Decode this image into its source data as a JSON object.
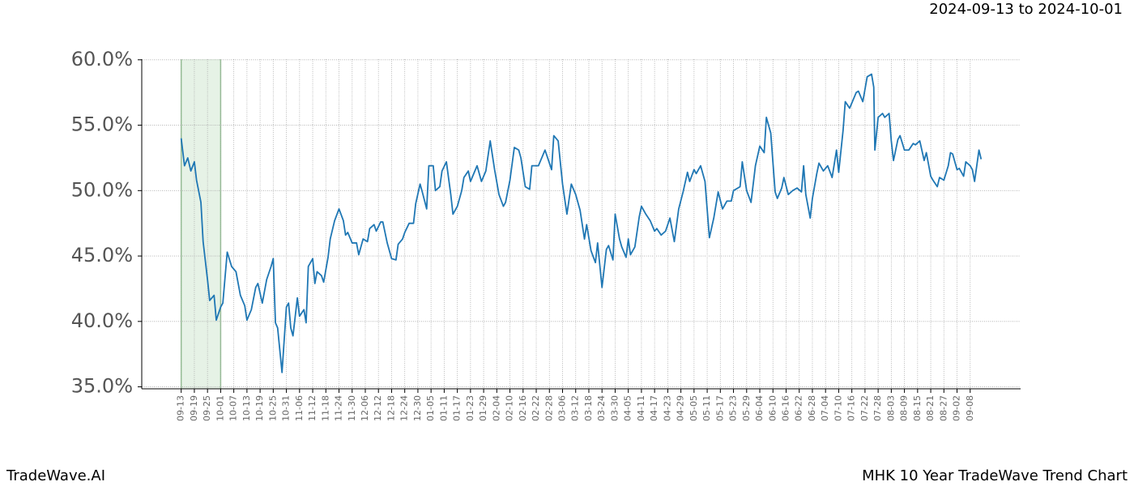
{
  "chart_data": {
    "type": "line",
    "header": "2024-09-13 to 2024-10-01",
    "footer_left": "TradeWave.AI",
    "footer_right": "MHK 10 Year TradeWave Trend Chart",
    "highlight_xlim": [
      0,
      18
    ],
    "highlight_color": "#e6f2e6",
    "grid": true,
    "xlim": [
      -18,
      383
    ],
    "ylim": [
      34.85,
      60.05
    ],
    "yticks": [
      {
        "value": 35,
        "label": "35.0%"
      },
      {
        "value": 40,
        "label": "40.0%"
      },
      {
        "value": 45,
        "label": "45.0%"
      },
      {
        "value": 50,
        "label": "50.0%"
      },
      {
        "value": 55,
        "label": "55.0%"
      },
      {
        "value": 60,
        "label": "60.0%"
      }
    ],
    "xticks": [
      {
        "value": 0,
        "label": "09-13"
      },
      {
        "value": 6,
        "label": "09-19"
      },
      {
        "value": 12,
        "label": "09-25"
      },
      {
        "value": 18,
        "label": "10-01"
      },
      {
        "value": 24,
        "label": "10-07"
      },
      {
        "value": 30,
        "label": "10-13"
      },
      {
        "value": 36,
        "label": "10-19"
      },
      {
        "value": 42,
        "label": "10-25"
      },
      {
        "value": 48,
        "label": "10-31"
      },
      {
        "value": 54,
        "label": "11-06"
      },
      {
        "value": 60,
        "label": "11-12"
      },
      {
        "value": 66,
        "label": "11-18"
      },
      {
        "value": 72,
        "label": "11-24"
      },
      {
        "value": 78,
        "label": "11-30"
      },
      {
        "value": 84,
        "label": "12-06"
      },
      {
        "value": 90,
        "label": "12-12"
      },
      {
        "value": 96,
        "label": "12-18"
      },
      {
        "value": 102,
        "label": "12-24"
      },
      {
        "value": 108,
        "label": "12-30"
      },
      {
        "value": 114,
        "label": "01-05"
      },
      {
        "value": 120,
        "label": "01-11"
      },
      {
        "value": 126,
        "label": "01-17"
      },
      {
        "value": 132,
        "label": "01-23"
      },
      {
        "value": 138,
        "label": "01-29"
      },
      {
        "value": 144,
        "label": "02-04"
      },
      {
        "value": 150,
        "label": "02-10"
      },
      {
        "value": 156,
        "label": "02-16"
      },
      {
        "value": 162,
        "label": "02-22"
      },
      {
        "value": 168,
        "label": "02-28"
      },
      {
        "value": 174,
        "label": "03-06"
      },
      {
        "value": 180,
        "label": "03-12"
      },
      {
        "value": 186,
        "label": "03-18"
      },
      {
        "value": 192,
        "label": "03-24"
      },
      {
        "value": 198,
        "label": "03-30"
      },
      {
        "value": 204,
        "label": "04-05"
      },
      {
        "value": 210,
        "label": "04-11"
      },
      {
        "value": 216,
        "label": "04-17"
      },
      {
        "value": 222,
        "label": "04-23"
      },
      {
        "value": 228,
        "label": "04-29"
      },
      {
        "value": 234,
        "label": "05-05"
      },
      {
        "value": 240,
        "label": "05-11"
      },
      {
        "value": 246,
        "label": "05-17"
      },
      {
        "value": 252,
        "label": "05-23"
      },
      {
        "value": 258,
        "label": "05-29"
      },
      {
        "value": 264,
        "label": "06-04"
      },
      {
        "value": 270,
        "label": "06-10"
      },
      {
        "value": 276,
        "label": "06-16"
      },
      {
        "value": 282,
        "label": "06-22"
      },
      {
        "value": 288,
        "label": "06-28"
      },
      {
        "value": 294,
        "label": "07-04"
      },
      {
        "value": 300,
        "label": "07-10"
      },
      {
        "value": 306,
        "label": "07-16"
      },
      {
        "value": 312,
        "label": "07-22"
      },
      {
        "value": 318,
        "label": "07-28"
      },
      {
        "value": 324,
        "label": "08-03"
      },
      {
        "value": 330,
        "label": "08-09"
      },
      {
        "value": 336,
        "label": "08-15"
      },
      {
        "value": 342,
        "label": "08-21"
      },
      {
        "value": 348,
        "label": "08-27"
      },
      {
        "value": 354,
        "label": "09-02"
      },
      {
        "value": 360,
        "label": "09-08"
      }
    ],
    "x": [
      0,
      1.5,
      3,
      4.4,
      6,
      7,
      9,
      10,
      12,
      13,
      15,
      16,
      18,
      19,
      21,
      23,
      25,
      27,
      29,
      30,
      32,
      34,
      35,
      37,
      39,
      41,
      42,
      43,
      44,
      46,
      48,
      49,
      50,
      51,
      53,
      54,
      56,
      57,
      58,
      60,
      61,
      62,
      64,
      65,
      67,
      68,
      70,
      72,
      74,
      75,
      76,
      78,
      80,
      81,
      83,
      85,
      86,
      88,
      89,
      91,
      92,
      94,
      96,
      98,
      99,
      101,
      102,
      104,
      106,
      107,
      109,
      110,
      112,
      113,
      115,
      116,
      118,
      119,
      121,
      123,
      124,
      126,
      128,
      129,
      131,
      132,
      135,
      137,
      139,
      141,
      143,
      145,
      147,
      148,
      150,
      152,
      154,
      155,
      157,
      159,
      160,
      163,
      164,
      166,
      169,
      170,
      172,
      174,
      176,
      178,
      180,
      182,
      184,
      185,
      187,
      189,
      190,
      192,
      194,
      195,
      197,
      198,
      200,
      201,
      203,
      204,
      205,
      207,
      209,
      210,
      212,
      214,
      216,
      217,
      219,
      221,
      223,
      225,
      227,
      229,
      231,
      232,
      234,
      235,
      237,
      239,
      241,
      243,
      245,
      247,
      249,
      251,
      252,
      255,
      256,
      258,
      260,
      262,
      264,
      266,
      267,
      269,
      271,
      272,
      274,
      275,
      277,
      279,
      281,
      283,
      284,
      285,
      287,
      288,
      290,
      291,
      293,
      295,
      297,
      299,
      300,
      302,
      303,
      305,
      306,
      308,
      309,
      311,
      313,
      315,
      316,
      316.5,
      318,
      320,
      321,
      323,
      324,
      325,
      327,
      328,
      330,
      332,
      334,
      335,
      337,
      339,
      340,
      342,
      343,
      345,
      346,
      348,
      350,
      351,
      352,
      354,
      355,
      357,
      358,
      360,
      361,
      362,
      364,
      365
    ],
    "series": [
      {
        "color": "#1f77b4",
        "values": [
          54.0,
          51.9,
          52.5,
          51.5,
          52.2,
          50.8,
          49.1,
          46.1,
          43.2,
          41.6,
          42.0,
          40.1,
          41.1,
          41.4,
          45.3,
          44.2,
          43.8,
          42.0,
          41.2,
          40.1,
          40.9,
          42.6,
          42.9,
          41.4,
          43.2,
          44.2,
          44.8,
          39.9,
          39.5,
          36.1,
          41.1,
          41.4,
          39.5,
          38.9,
          41.8,
          40.4,
          40.9,
          39.9,
          44.2,
          44.8,
          42.9,
          43.8,
          43.5,
          43.0,
          44.9,
          46.3,
          47.7,
          48.6,
          47.7,
          46.6,
          46.8,
          46.0,
          46.0,
          45.1,
          46.3,
          46.1,
          47.1,
          47.4,
          46.9,
          47.6,
          47.6,
          46.0,
          44.8,
          44.7,
          45.9,
          46.3,
          46.8,
          47.5,
          47.5,
          49.0,
          50.5,
          49.9,
          48.6,
          51.9,
          51.9,
          50.0,
          50.3,
          51.5,
          52.2,
          49.7,
          48.2,
          48.8,
          50.0,
          51.0,
          51.5,
          50.7,
          51.9,
          50.7,
          51.5,
          53.8,
          51.6,
          49.7,
          48.8,
          49.1,
          50.8,
          53.3,
          53.1,
          52.5,
          50.3,
          50.1,
          51.9,
          51.9,
          52.3,
          53.1,
          51.6,
          54.2,
          53.8,
          50.5,
          48.2,
          50.5,
          49.7,
          48.5,
          46.3,
          47.4,
          45.4,
          44.5,
          46.0,
          42.6,
          45.5,
          45.8,
          44.7,
          48.2,
          46.3,
          45.7,
          44.9,
          46.3,
          45.1,
          45.7,
          48.0,
          48.8,
          48.2,
          47.7,
          46.9,
          47.1,
          46.6,
          46.9,
          47.9,
          46.1,
          48.6,
          49.9,
          51.4,
          50.7,
          51.6,
          51.3,
          51.9,
          50.7,
          46.4,
          47.9,
          49.9,
          48.6,
          49.2,
          49.2,
          50.0,
          50.3,
          52.2,
          50.0,
          49.1,
          51.9,
          53.4,
          52.9,
          55.6,
          54.4,
          49.9,
          49.4,
          50.2,
          51.0,
          49.7,
          50.0,
          50.2,
          49.9,
          51.9,
          49.7,
          47.9,
          49.4,
          51.3,
          52.1,
          51.5,
          51.9,
          51.0,
          53.1,
          51.4,
          54.6,
          56.8,
          56.3,
          56.7,
          57.5,
          57.6,
          56.8,
          58.7,
          58.9,
          57.9,
          53.1,
          55.6,
          55.9,
          55.6,
          55.9,
          53.8,
          52.3,
          53.9,
          54.2,
          53.1,
          53.1,
          53.6,
          53.5,
          53.8,
          52.3,
          52.9,
          51.1,
          50.8,
          50.3,
          51.0,
          50.8,
          51.9,
          52.9,
          52.8,
          51.6,
          51.7,
          51.1,
          52.2,
          51.9,
          51.6,
          50.7,
          53.1,
          52.4
        ]
      }
    ]
  }
}
